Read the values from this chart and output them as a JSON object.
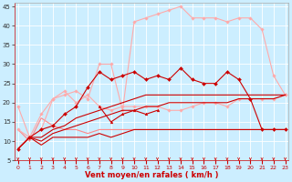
{
  "x": [
    0,
    1,
    2,
    3,
    4,
    5,
    6,
    7,
    8,
    9,
    10,
    11,
    12,
    13,
    14,
    15,
    16,
    17,
    18,
    19,
    20,
    21,
    22,
    23
  ],
  "lines": [
    {
      "y": [
        8,
        11,
        9,
        11,
        11,
        11,
        11,
        12,
        11,
        12,
        13,
        13,
        13,
        13,
        13,
        13,
        13,
        13,
        13,
        13,
        13,
        13,
        13,
        13
      ],
      "color": "#cc0000",
      "marker": null,
      "lw": 0.8,
      "zorder": 3
    },
    {
      "y": [
        8,
        11,
        10,
        12,
        13,
        14,
        15,
        16,
        17,
        18,
        18,
        19,
        19,
        20,
        20,
        20,
        20,
        20,
        20,
        21,
        21,
        21,
        21,
        22
      ],
      "color": "#cc0000",
      "marker": null,
      "lw": 0.8,
      "zorder": 3
    },
    {
      "y": [
        8,
        11,
        11,
        13,
        14,
        16,
        17,
        18,
        19,
        20,
        21,
        22,
        22,
        22,
        22,
        22,
        22,
        22,
        22,
        22,
        22,
        22,
        22,
        22
      ],
      "color": "#cc0000",
      "marker": null,
      "lw": 0.8,
      "zorder": 3
    },
    {
      "y": [
        8,
        11,
        13,
        14,
        17,
        19,
        24,
        28,
        26,
        27,
        28,
        26,
        27,
        26,
        29,
        26,
        25,
        25,
        28,
        26,
        21,
        13,
        13,
        13
      ],
      "color": "#cc0000",
      "marker": "D",
      "markersize": 2,
      "lw": 0.8,
      "zorder": 4
    },
    {
      "y": [
        null,
        null,
        null,
        null,
        null,
        null,
        null,
        19,
        15,
        17,
        18,
        17,
        18,
        null,
        null,
        null,
        null,
        null,
        null,
        null,
        null,
        null,
        null,
        null
      ],
      "color": "#cc0000",
      "marker": "^",
      "markersize": 2,
      "lw": 0.8,
      "zorder": 4
    },
    {
      "y": [
        13,
        10,
        16,
        14,
        13,
        13,
        12,
        13,
        13,
        13,
        13,
        13,
        13,
        13,
        13,
        13,
        13,
        13,
        13,
        13,
        13,
        13,
        13,
        13
      ],
      "color": "#ff8888",
      "marker": null,
      "lw": 0.8,
      "zorder": 2
    },
    {
      "y": [
        19,
        11,
        17,
        21,
        23,
        20,
        22,
        19,
        18,
        19,
        19,
        19,
        19,
        18,
        18,
        19,
        20,
        20,
        19,
        21,
        21,
        21,
        21,
        22
      ],
      "color": "#ffaaaa",
      "marker": "D",
      "markersize": 1.8,
      "lw": 0.8,
      "zorder": 2
    },
    {
      "y": [
        13,
        11,
        13,
        21,
        22,
        23,
        21,
        30,
        30,
        18,
        41,
        42,
        43,
        44,
        45,
        42,
        42,
        42,
        41,
        42,
        42,
        39,
        27,
        22
      ],
      "color": "#ffaaaa",
      "marker": "D",
      "markersize": 1.8,
      "lw": 0.8,
      "zorder": 2
    }
  ],
  "xlim": [
    -0.3,
    23.3
  ],
  "ylim": [
    5,
    46
  ],
  "yticks": [
    5,
    10,
    15,
    20,
    25,
    30,
    35,
    40,
    45
  ],
  "xticks": [
    0,
    1,
    2,
    3,
    4,
    5,
    6,
    7,
    8,
    9,
    10,
    11,
    12,
    13,
    14,
    15,
    16,
    17,
    18,
    19,
    20,
    21,
    22,
    23
  ],
  "xlabel": "Vent moyen/en rafales ( km/h )",
  "bg_color": "#cceeff",
  "grid_color": "#ffffff",
  "tick_color": "#cc0000",
  "label_color": "#cc0000"
}
